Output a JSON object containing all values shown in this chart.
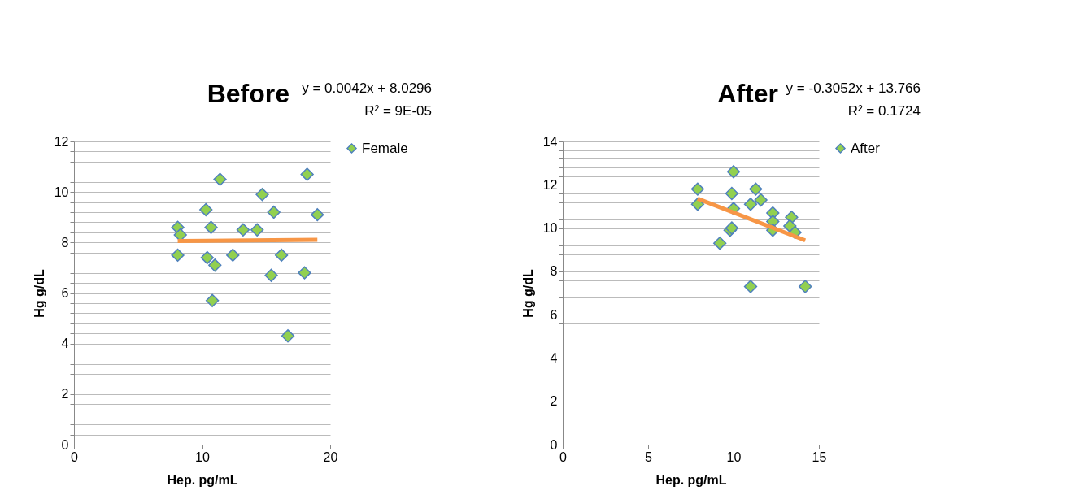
{
  "chart_data": [
    {
      "type": "scatter",
      "title": "Before",
      "xlabel": "Hep.   pg/mL",
      "ylabel": "Hg   g/dL",
      "marker": "diamond",
      "grid": "y",
      "legend": "right",
      "annotations": [
        "y = 0.0042x + 8.0296",
        "R² = 9E-05"
      ],
      "xlim": [
        0,
        20
      ],
      "xticks": [
        0,
        10,
        20
      ],
      "ylim": [
        0,
        12
      ],
      "yticks": [
        0,
        {
          "value": 0.4,
          "label": null
        },
        {
          "value": 0.8,
          "label": null
        },
        {
          "value": 1.2,
          "label": null
        },
        {
          "value": 1.6,
          "label": null
        },
        2,
        {
          "value": 2.4,
          "label": null
        },
        {
          "value": 2.8,
          "label": null
        },
        {
          "value": 3.2,
          "label": null
        },
        {
          "value": 3.6,
          "label": null
        },
        4,
        {
          "value": 4.4,
          "label": null
        },
        {
          "value": 4.8,
          "label": null
        },
        {
          "value": 5.2,
          "label": null
        },
        {
          "value": 5.6,
          "label": null
        },
        6,
        {
          "value": 6.4,
          "label": null
        },
        {
          "value": 6.8,
          "label": null
        },
        {
          "value": 7.2,
          "label": null
        },
        {
          "value": 7.6,
          "label": null
        },
        8,
        {
          "value": 8.4,
          "label": null
        },
        {
          "value": 8.8,
          "label": null
        },
        {
          "value": 9.2,
          "label": null
        },
        {
          "value": 9.6,
          "label": null
        },
        10,
        {
          "value": 10.4,
          "label": null
        },
        {
          "value": 10.8,
          "label": null
        },
        {
          "value": 11.2,
          "label": null
        },
        {
          "value": 11.6,
          "label": null
        },
        12
      ],
      "series": [
        {
          "name": "Female",
          "color": "#92d050",
          "x": [
            8.1,
            8.3,
            8.1,
            10.3,
            10.7,
            11.4,
            10.4,
            11.0,
            10.8,
            12.4,
            13.2,
            14.3,
            14.7,
            15.6,
            15.4,
            16.2,
            16.7,
            18.0,
            18.2,
            19.0
          ],
          "values": [
            8.6,
            8.3,
            7.5,
            9.3,
            8.6,
            10.5,
            7.4,
            7.1,
            5.7,
            7.5,
            8.5,
            8.5,
            9.9,
            9.2,
            6.7,
            7.5,
            4.3,
            6.8,
            10.7,
            9.1
          ]
        },
        {
          "type": "line",
          "marker": "none",
          "color": "#f79646",
          "x": [
            8.1,
            19.0
          ],
          "values": [
            8.06,
            8.11
          ]
        }
      ]
    },
    {
      "type": "scatter",
      "title": "After",
      "xlabel": "Hep.   pg/mL",
      "ylabel": "Hg   g/dL",
      "marker": "diamond",
      "grid": "y",
      "legend": "right",
      "annotations": [
        "y = -0.3052x + 13.766",
        "R² = 0.1724"
      ],
      "xlim": [
        0,
        15
      ],
      "xticks": [
        0,
        5,
        10,
        15
      ],
      "ylim": [
        0,
        14
      ],
      "yticks": [
        0,
        {
          "value": 0.4,
          "label": null
        },
        {
          "value": 0.8,
          "label": null
        },
        {
          "value": 1.2,
          "label": null
        },
        {
          "value": 1.6,
          "label": null
        },
        2,
        {
          "value": 2.4,
          "label": null
        },
        {
          "value": 2.8,
          "label": null
        },
        {
          "value": 3.2,
          "label": null
        },
        {
          "value": 3.6,
          "label": null
        },
        4,
        {
          "value": 4.4,
          "label": null
        },
        {
          "value": 4.8,
          "label": null
        },
        {
          "value": 5.2,
          "label": null
        },
        {
          "value": 5.6,
          "label": null
        },
        6,
        {
          "value": 6.4,
          "label": null
        },
        {
          "value": 6.8,
          "label": null
        },
        {
          "value": 7.2,
          "label": null
        },
        {
          "value": 7.6,
          "label": null
        },
        8,
        {
          "value": 8.4,
          "label": null
        },
        {
          "value": 8.8,
          "label": null
        },
        {
          "value": 9.2,
          "label": null
        },
        {
          "value": 9.6,
          "label": null
        },
        10,
        {
          "value": 10.4,
          "label": null
        },
        {
          "value": 10.8,
          "label": null
        },
        {
          "value": 11.2,
          "label": null
        },
        {
          "value": 11.6,
          "label": null
        },
        12,
        {
          "value": 12.4,
          "label": null
        },
        {
          "value": 12.8,
          "label": null
        },
        {
          "value": 13.2,
          "label": null
        },
        {
          "value": 13.6,
          "label": null
        },
        14
      ],
      "series": [
        {
          "name": "After",
          "color": "#92d050",
          "x": [
            7.9,
            7.9,
            9.2,
            9.8,
            9.9,
            10.0,
            9.9,
            10.0,
            11.0,
            11.3,
            11.6,
            11.0,
            12.3,
            12.3,
            12.3,
            13.4,
            13.3,
            13.6,
            14.2
          ],
          "values": [
            11.8,
            11.1,
            9.3,
            9.9,
            10.0,
            12.6,
            11.6,
            10.9,
            11.1,
            11.8,
            11.3,
            7.3,
            10.7,
            10.3,
            9.9,
            10.5,
            10.1,
            9.8,
            7.3
          ]
        },
        {
          "type": "line",
          "marker": "none",
          "color": "#f79646",
          "x": [
            7.9,
            14.2
          ],
          "values": [
            11.36,
            9.43
          ]
        }
      ]
    }
  ]
}
